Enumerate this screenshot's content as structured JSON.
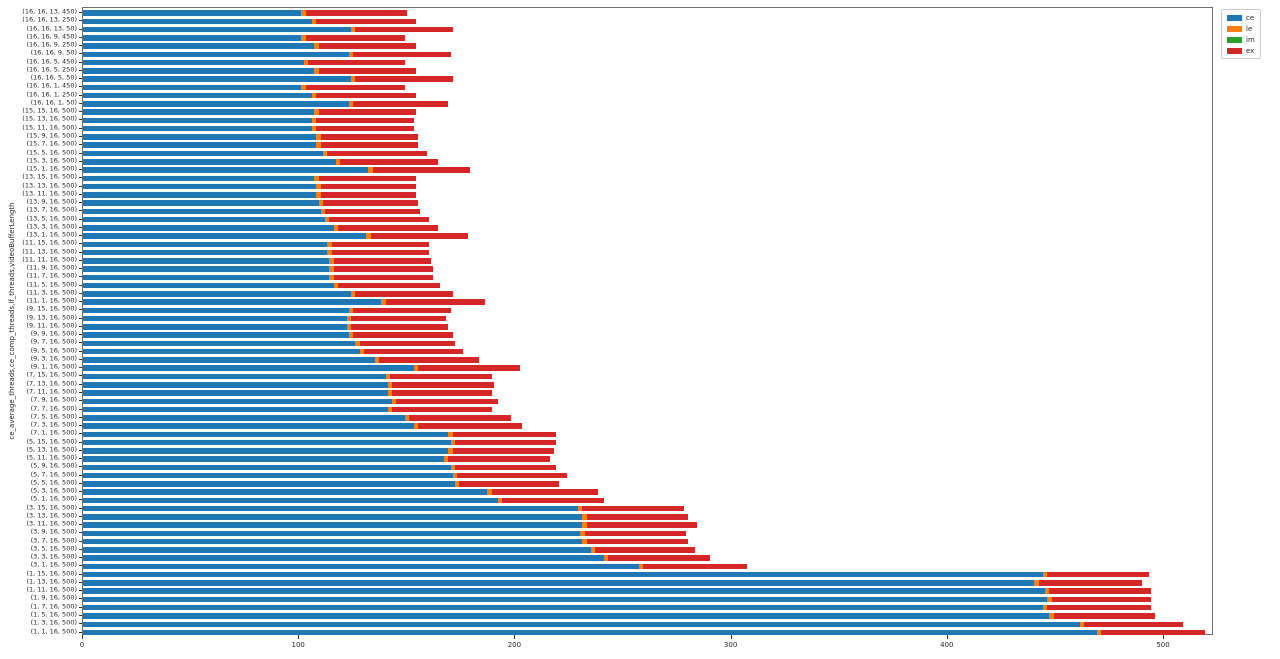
{
  "figure": {
    "background": "#ffffff"
  },
  "chart_data": {
    "type": "bar",
    "orientation": "horizontal",
    "stacked": true,
    "title": "",
    "xlabel": "",
    "ylabel": "ce_average_threads,ce_comp_threads,lf_threads,videoBufferLength",
    "grid": false,
    "xlim": [
      0,
      523
    ],
    "x_ticks": [
      0,
      100,
      200,
      300,
      400,
      500
    ],
    "legend_position": "upper right",
    "categories": [
      "(16, 16, 13, 450)",
      "(16, 16, 13, 250)",
      "(16, 16, 13, 50)",
      "(16, 16, 9, 450)",
      "(16, 16, 9, 250)",
      "(16, 16, 9, 50)",
      "(16, 16, 5, 450)",
      "(16, 16, 5, 250)",
      "(16, 16, 5, 50)",
      "(16, 16, 1, 450)",
      "(16, 16, 1, 250)",
      "(16, 16, 1, 50)",
      "(15, 15, 16, 500)",
      "(15, 13, 16, 500)",
      "(15, 11, 16, 500)",
      "(15, 9, 16, 500)",
      "(15, 7, 16, 500)",
      "(15, 5, 16, 500)",
      "(15, 3, 16, 500)",
      "(15, 1, 16, 500)",
      "(13, 15, 16, 500)",
      "(13, 13, 16, 500)",
      "(13, 11, 16, 500)",
      "(13, 9, 16, 500)",
      "(13, 7, 16, 500)",
      "(13, 5, 16, 500)",
      "(13, 3, 16, 500)",
      "(13, 1, 16, 500)",
      "(11, 15, 16, 500)",
      "(11, 13, 16, 500)",
      "(11, 11, 16, 500)",
      "(11, 9, 16, 500)",
      "(11, 7, 16, 500)",
      "(11, 5, 16, 500)",
      "(11, 3, 16, 500)",
      "(11, 1, 16, 500)",
      "(9, 15, 16, 500)",
      "(9, 13, 16, 500)",
      "(9, 11, 16, 500)",
      "(9, 9, 16, 500)",
      "(9, 7, 16, 500)",
      "(9, 5, 16, 500)",
      "(9, 3, 16, 500)",
      "(9, 1, 16, 500)",
      "(7, 15, 16, 500)",
      "(7, 13, 16, 500)",
      "(7, 11, 16, 500)",
      "(7, 9, 16, 500)",
      "(7, 7, 16, 500)",
      "(7, 5, 16, 500)",
      "(7, 3, 16, 500)",
      "(7, 1, 16, 500)",
      "(5, 15, 16, 500)",
      "(5, 13, 16, 500)",
      "(5, 11, 16, 500)",
      "(5, 9, 16, 500)",
      "(5, 7, 16, 500)",
      "(5, 5, 16, 500)",
      "(5, 3, 16, 500)",
      "(5, 1, 16, 500)",
      "(3, 15, 16, 500)",
      "(3, 13, 16, 500)",
      "(3, 11, 16, 500)",
      "(3, 9, 16, 500)",
      "(3, 7, 16, 500)",
      "(3, 5, 16, 500)",
      "(3, 3, 16, 500)",
      "(3, 1, 16, 500)",
      "(1, 15, 16, 500)",
      "(1, 13, 16, 500)",
      "(1, 11, 16, 500)",
      "(1, 9, 16, 500)",
      "(1, 7, 16, 500)",
      "(1, 5, 16, 500)",
      "(1, 3, 16, 500)",
      "(1, 1, 16, 500)"
    ],
    "series": [
      {
        "name": "ce",
        "color": "#1f77b4",
        "values": [
          101,
          106,
          124,
          101,
          107,
          123,
          102,
          107,
          124,
          101,
          106,
          123,
          107,
          106,
          106,
          108,
          108,
          111,
          117,
          132,
          107,
          108,
          108,
          109,
          110,
          112,
          116,
          131,
          113,
          113,
          114,
          114,
          114,
          116,
          124,
          138,
          123,
          122,
          122,
          123,
          126,
          128,
          135,
          153,
          140,
          141,
          141,
          143,
          141,
          149,
          153,
          169,
          170,
          169,
          167,
          170,
          171,
          172,
          187,
          192,
          229,
          231,
          231,
          230,
          231,
          235,
          241,
          257,
          444,
          440,
          445,
          446,
          444,
          447,
          461,
          469
        ]
      },
      {
        "name": "le",
        "color": "#ff7f0e",
        "values": [
          2,
          2,
          2,
          2,
          2,
          2,
          2,
          2,
          2,
          2,
          2,
          2,
          2,
          2,
          2,
          2,
          2,
          2,
          2,
          2,
          2,
          2,
          2,
          2,
          2,
          2,
          2,
          2,
          2,
          2,
          2,
          2,
          2,
          2,
          2,
          2,
          2,
          2,
          2,
          2,
          2,
          2,
          2,
          2,
          2,
          2,
          2,
          2,
          2,
          2,
          2,
          2,
          2,
          2,
          2,
          2,
          2,
          2,
          2,
          2,
          2,
          2,
          2,
          2,
          2,
          2,
          2,
          2,
          2,
          2,
          2,
          2,
          2,
          2,
          2,
          2
        ]
      },
      {
        "name": "im",
        "color": "#2ca02c",
        "values": [
          0,
          0,
          0,
          0,
          0,
          0,
          0,
          0,
          0,
          0,
          0,
          0,
          0,
          0,
          0,
          0,
          0,
          0,
          0,
          0,
          0,
          0,
          0,
          0,
          0,
          0,
          0,
          0,
          0,
          0,
          0,
          0,
          0,
          0,
          0,
          0,
          0,
          0,
          0,
          0,
          0,
          0,
          0,
          0,
          0,
          0,
          0,
          0,
          0,
          0,
          0,
          0,
          0,
          0,
          0,
          0,
          0,
          0,
          0,
          0,
          0,
          0,
          0,
          0,
          0,
          0,
          0,
          0,
          0,
          0,
          0,
          0,
          0,
          0,
          0,
          0
        ]
      },
      {
        "name": "ex",
        "color": "#d62728",
        "values": [
          47,
          46,
          45,
          46,
          45,
          45,
          45,
          45,
          45,
          46,
          46,
          44,
          45,
          45,
          45,
          45,
          45,
          46,
          45,
          45,
          45,
          44,
          44,
          44,
          44,
          46,
          46,
          45,
          45,
          45,
          45,
          46,
          46,
          47,
          45,
          46,
          45,
          44,
          45,
          46,
          44,
          46,
          46,
          47,
          47,
          47,
          46,
          47,
          46,
          47,
          48,
          48,
          47,
          47,
          47,
          47,
          51,
          46,
          49,
          47,
          47,
          47,
          51,
          47,
          47,
          46,
          47,
          48,
          47,
          48,
          47,
          46,
          48,
          47,
          46,
          48
        ]
      }
    ],
    "legend": [
      {
        "label": "ce",
        "color": "#1f77b4"
      },
      {
        "label": "le",
        "color": "#ff7f0e"
      },
      {
        "label": "im",
        "color": "#2ca02c"
      },
      {
        "label": "ex",
        "color": "#d62728"
      }
    ]
  }
}
